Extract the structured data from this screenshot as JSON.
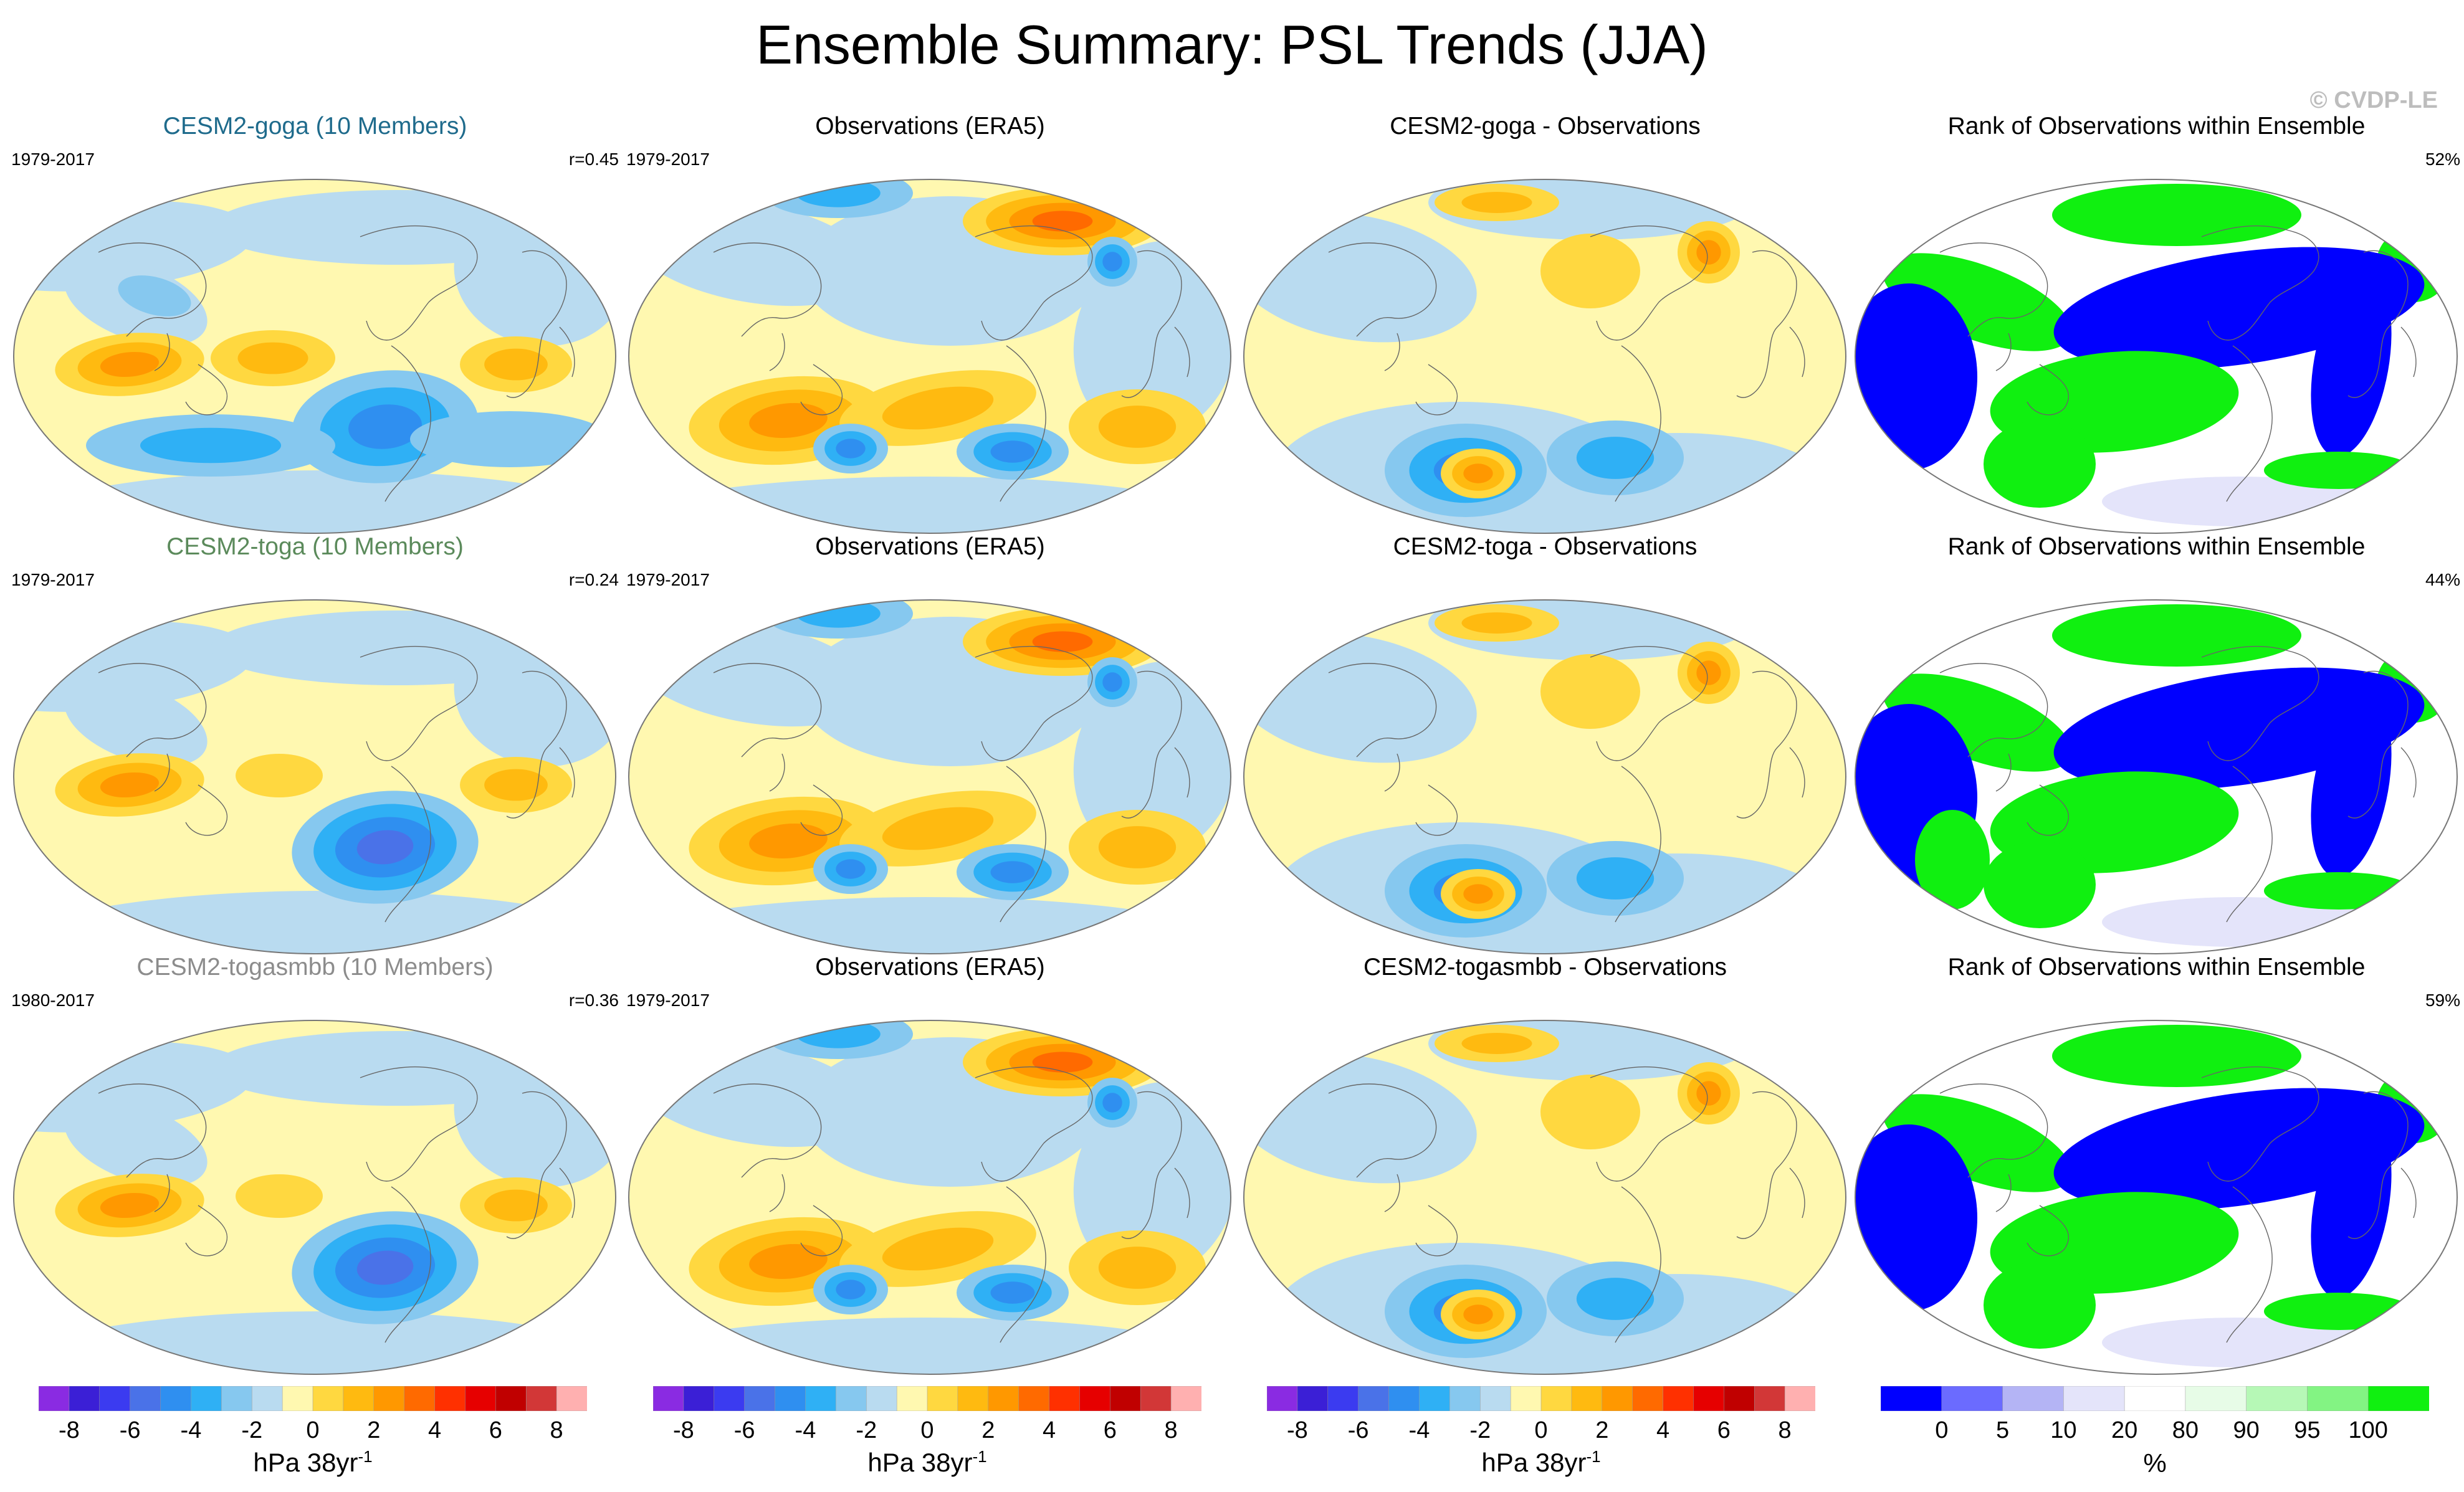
{
  "title": "Ensemble Summary: PSL Trends (JJA)",
  "credit": "© CVDP-LE",
  "colors": {
    "goga": "#1f6b8c",
    "toga": "#5b8a5b",
    "togasmbb": "#8c8c8c",
    "diverging": [
      "#8a2be2",
      "#3b1fd6",
      "#3b3bf0",
      "#4a72e8",
      "#2f8ff0",
      "#2fb0f5",
      "#86c8ef",
      "#b9dbf0",
      "#fff8b0",
      "#ffd840",
      "#ffba10",
      "#ff9800",
      "#ff6a00",
      "#ff3000",
      "#e60000",
      "#c00000",
      "#d23737",
      "#ffb0b0"
    ],
    "rank": [
      "#0000ff",
      "#6b6bff",
      "#b4b4f5",
      "#e4e4fa",
      "#ffffff",
      "#e7fce7",
      "#b6f8b6",
      "#83f483",
      "#10f010"
    ]
  },
  "rows": [
    {
      "model": {
        "title": "CESM2-goga (10 Members)",
        "period": "1979-2017",
        "corr": "r=0.45",
        "title_color": "#1f6b8c"
      },
      "obs": {
        "title": "Observations (ERA5)",
        "period": "1979-2017"
      },
      "diff": {
        "title": "CESM2-goga - Observations"
      },
      "rank": {
        "title": "Rank of Observations within Ensemble",
        "pct": "52%"
      }
    },
    {
      "model": {
        "title": "CESM2-toga (10 Members)",
        "period": "1979-2017",
        "corr": "r=0.24",
        "title_color": "#5b8a5b"
      },
      "obs": {
        "title": "Observations (ERA5)",
        "period": "1979-2017"
      },
      "diff": {
        "title": "CESM2-toga - Observations"
      },
      "rank": {
        "title": "Rank of Observations within Ensemble",
        "pct": "44%"
      }
    },
    {
      "model": {
        "title": "CESM2-togasmbb (10 Members)",
        "period": "1980-2017",
        "corr": "r=0.36",
        "title_color": "#8c8c8c"
      },
      "obs": {
        "title": "Observations (ERA5)",
        "period": "1979-2017"
      },
      "diff": {
        "title": "CESM2-togasmbb - Observations"
      },
      "rank": {
        "title": "Rank of Observations within Ensemble",
        "pct": "59%"
      }
    }
  ],
  "colorbars": {
    "psl": {
      "ticks": [
        "-8",
        "-6",
        "-4",
        "-2",
        "0",
        "2",
        "4",
        "6",
        "8"
      ],
      "unit": "hPa 38yr",
      "unit_sup": "-1"
    },
    "rank": {
      "ticks": [
        "0",
        "5",
        "10",
        "20",
        "80",
        "90",
        "95",
        "100"
      ],
      "unit": "%"
    }
  }
}
